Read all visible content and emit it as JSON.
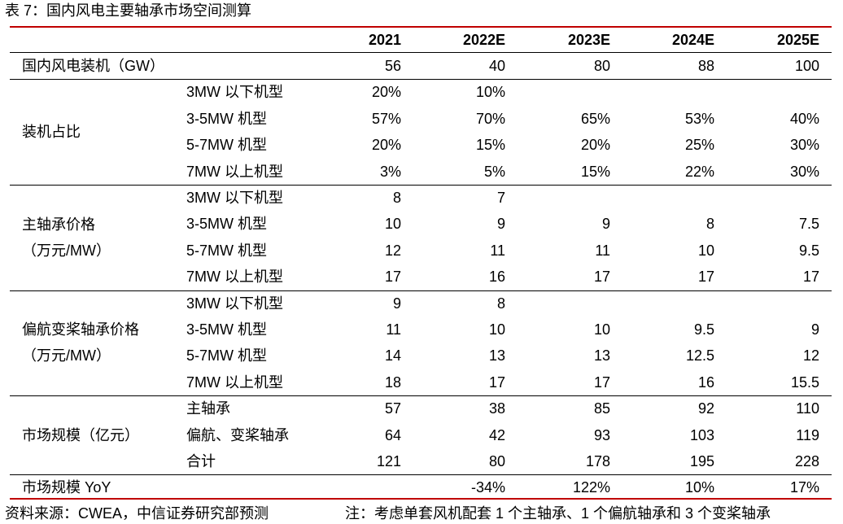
{
  "caption": "表 7：国内风电主要轴承市场空间测算",
  "table": {
    "columns": [
      "2021",
      "2022E",
      "2023E",
      "2024E",
      "2025E"
    ],
    "sections": [
      {
        "label": [
          "国内风电装机（GW）"
        ],
        "rows": [
          {
            "cells": [
              "56",
              "40",
              "80",
              "88",
              "100"
            ]
          }
        ]
      },
      {
        "label": [
          "装机占比"
        ],
        "rows": [
          {
            "label": "3MW 以下机型",
            "cells": [
              "20%",
              "10%",
              null,
              null,
              null
            ]
          },
          {
            "label": "3-5MW 机型",
            "cells": [
              "57%",
              "70%",
              "65%",
              "53%",
              "40%"
            ]
          },
          {
            "label": "5-7MW 机型",
            "cells": [
              "20%",
              "15%",
              "20%",
              "25%",
              "30%"
            ]
          },
          {
            "label": "7MW 以上机型",
            "cells": [
              "3%",
              "5%",
              "15%",
              "22%",
              "30%"
            ]
          }
        ]
      },
      {
        "label": [
          "主轴承价格",
          "（万元/MW）"
        ],
        "rows": [
          {
            "label": "3MW 以下机型",
            "cells": [
              "8",
              "7",
              null,
              null,
              null
            ]
          },
          {
            "label": "3-5MW 机型",
            "cells": [
              "10",
              "9",
              "9",
              "8",
              "7.5"
            ]
          },
          {
            "label": "5-7MW 机型",
            "cells": [
              "12",
              "11",
              "11",
              "10",
              "9.5"
            ]
          },
          {
            "label": "7MW 以上机型",
            "cells": [
              "17",
              "16",
              "17",
              "17",
              "17"
            ]
          }
        ]
      },
      {
        "label": [
          "偏航变桨轴承价格",
          "（万元/MW）"
        ],
        "rows": [
          {
            "label": "3MW 以下机型",
            "cells": [
              "9",
              "8",
              null,
              null,
              null
            ]
          },
          {
            "label": "3-5MW 机型",
            "cells": [
              "11",
              "10",
              "10",
              "9.5",
              "9"
            ]
          },
          {
            "label": "5-7MW 机型",
            "cells": [
              "14",
              "13",
              "13",
              "12.5",
              "12"
            ]
          },
          {
            "label": "7MW 以上机型",
            "cells": [
              "18",
              "17",
              "17",
              "16",
              "15.5"
            ]
          }
        ]
      },
      {
        "label": [
          "市场规模（亿元）"
        ],
        "rows": [
          {
            "label": "主轴承",
            "cells": [
              "57",
              "38",
              "85",
              "92",
              "110"
            ]
          },
          {
            "label": "偏航、变桨轴承",
            "cells": [
              "64",
              "42",
              "93",
              "103",
              "119"
            ]
          },
          {
            "label": "合计",
            "cells": [
              "121",
              "80",
              "178",
              "195",
              "228"
            ]
          }
        ]
      },
      {
        "label": [
          "市场规模 YoY"
        ],
        "rows": [
          {
            "cells": [
              null,
              "-34%",
              "122%",
              "10%",
              "17%"
            ]
          }
        ]
      }
    ]
  },
  "source": "资料来源：CWEA，中信证券研究部预测",
  "note": "注：考虑单套风机配套 1 个主轴承、1 个偏航轴承和 3 个变桨轴承"
}
